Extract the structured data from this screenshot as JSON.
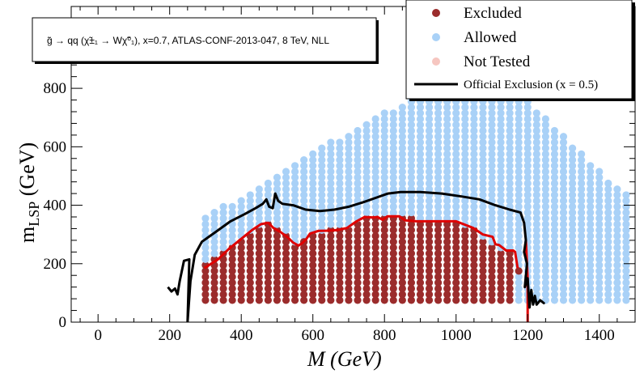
{
  "chart_data": {
    "type": "scatter",
    "title": "g̃ → qq (χ̃±₁ → Wχ̃⁰₁), x=0.7, ATLAS-CONF-2013-047, 8 TeV, NLL",
    "xlabel": "M (GeV)",
    "ylabel_main": "m",
    "ylabel_sub": "LSP",
    "ylabel_unit": " (GeV)",
    "xlim": [
      -75,
      1500
    ],
    "ylim": [
      0,
      1080
    ],
    "xticks": [
      0,
      200,
      400,
      600,
      800,
      1000,
      1200,
      1400
    ],
    "yticks": [
      0,
      200,
      400,
      600,
      800
    ],
    "legend": {
      "placement": "top-right",
      "entries": [
        {
          "label": "Excluded",
          "kind": "marker",
          "color": "#9b2c2c"
        },
        {
          "label": "Allowed",
          "kind": "marker",
          "color": "#a9d1f7"
        },
        {
          "label": "Not Tested",
          "kind": "marker",
          "color": "#f6c6c0"
        },
        {
          "label": "Official Exclusion (x = 0.5)",
          "kind": "line",
          "color": "#000000"
        }
      ]
    },
    "colors": {
      "excluded": "#9b2c2c",
      "allowed": "#a9d1f7",
      "not_tested": "#f6c6c0",
      "expected_boundary": "#e00000",
      "official_exclusion": "#000000"
    },
    "grid": {
      "x_start": 300,
      "x_end": 1475,
      "x_step": 25,
      "y_start": 75,
      "y_step": 20,
      "y_max_profile": [
        [
          300,
          360
        ],
        [
          350,
          395
        ],
        [
          400,
          430
        ],
        [
          450,
          470
        ],
        [
          500,
          510
        ],
        [
          550,
          545
        ],
        [
          600,
          580
        ],
        [
          650,
          615
        ],
        [
          700,
          650
        ],
        [
          750,
          685
        ],
        [
          800,
          715
        ],
        [
          850,
          750
        ],
        [
          900,
          785
        ],
        [
          950,
          775
        ],
        [
          1000,
          775
        ],
        [
          1050,
          775
        ],
        [
          1100,
          775
        ],
        [
          1150,
          770
        ],
        [
          1200,
          755
        ],
        [
          1250,
          700
        ],
        [
          1300,
          640
        ],
        [
          1350,
          580
        ],
        [
          1400,
          515
        ],
        [
          1450,
          460
        ],
        [
          1475,
          435
        ]
      ]
    },
    "excluded_region": [
      [
        300,
        200
      ],
      [
        350,
        240
      ],
      [
        400,
        280
      ],
      [
        450,
        320
      ],
      [
        475,
        340
      ],
      [
        500,
        320
      ],
      [
        525,
        300
      ],
      [
        550,
        260
      ],
      [
        575,
        280
      ],
      [
        600,
        300
      ],
      [
        650,
        320
      ],
      [
        700,
        330
      ],
      [
        750,
        360
      ],
      [
        800,
        360
      ],
      [
        850,
        360
      ],
      [
        900,
        350
      ],
      [
        950,
        340
      ],
      [
        1000,
        340
      ],
      [
        1050,
        320
      ],
      [
        1100,
        260
      ],
      [
        1150,
        240
      ],
      [
        1160,
        240
      ]
    ],
    "excluded_outliers": [
      [
        575,
        275
      ],
      [
        1175,
        175
      ]
    ],
    "expected_boundary": [
      [
        297,
        185
      ],
      [
        335,
        215
      ],
      [
        365,
        250
      ],
      [
        400,
        285
      ],
      [
        430,
        315
      ],
      [
        455,
        335
      ],
      [
        475,
        340
      ],
      [
        490,
        322
      ],
      [
        510,
        308
      ],
      [
        530,
        290
      ],
      [
        545,
        272
      ],
      [
        560,
        262
      ],
      [
        570,
        270
      ],
      [
        580,
        282
      ],
      [
        592,
        303
      ],
      [
        615,
        312
      ],
      [
        640,
        313
      ],
      [
        668,
        315
      ],
      [
        695,
        322
      ],
      [
        722,
        345
      ],
      [
        745,
        360
      ],
      [
        770,
        358
      ],
      [
        780,
        360
      ],
      [
        795,
        350
      ],
      [
        808,
        362
      ],
      [
        842,
        362
      ],
      [
        858,
        348
      ],
      [
        890,
        345
      ],
      [
        940,
        345
      ],
      [
        1000,
        345
      ],
      [
        1048,
        322
      ],
      [
        1075,
        300
      ],
      [
        1102,
        292
      ],
      [
        1110,
        266
      ],
      [
        1120,
        264
      ],
      [
        1140,
        245
      ],
      [
        1160,
        245
      ],
      [
        1165,
        240
      ],
      [
        1172,
        185
      ]
    ],
    "expected_boundary_tail": [
      [
        1195,
        280
      ],
      [
        1200,
        150
      ],
      [
        1200,
        0
      ]
    ],
    "official_exclusion": [
      [
        195,
        120
      ],
      [
        205,
        105
      ],
      [
        215,
        115
      ],
      [
        222,
        95
      ],
      [
        228,
        140
      ],
      [
        240,
        210
      ],
      [
        255,
        215
      ],
      [
        250,
        0
      ],
      [
        258,
        140
      ],
      [
        270,
        230
      ],
      [
        290,
        275
      ],
      [
        330,
        310
      ],
      [
        370,
        345
      ],
      [
        410,
        370
      ],
      [
        440,
        390
      ],
      [
        460,
        405
      ],
      [
        470,
        420
      ],
      [
        478,
        395
      ],
      [
        488,
        390
      ],
      [
        495,
        440
      ],
      [
        503,
        415
      ],
      [
        515,
        405
      ],
      [
        545,
        400
      ],
      [
        580,
        385
      ],
      [
        620,
        380
      ],
      [
        660,
        385
      ],
      [
        700,
        395
      ],
      [
        740,
        410
      ],
      [
        775,
        425
      ],
      [
        810,
        440
      ],
      [
        845,
        445
      ],
      [
        900,
        445
      ],
      [
        960,
        440
      ],
      [
        1015,
        430
      ],
      [
        1065,
        420
      ],
      [
        1110,
        400
      ],
      [
        1150,
        385
      ],
      [
        1180,
        375
      ],
      [
        1190,
        340
      ],
      [
        1195,
        280
      ],
      [
        1190,
        240
      ],
      [
        1198,
        200
      ],
      [
        1192,
        120
      ],
      [
        1200,
        150
      ],
      [
        1205,
        50
      ],
      [
        1210,
        110
      ],
      [
        1215,
        60
      ],
      [
        1220,
        90
      ],
      [
        1225,
        60
      ],
      [
        1235,
        75
      ],
      [
        1245,
        65
      ],
      [
        1240,
        70
      ]
    ]
  }
}
